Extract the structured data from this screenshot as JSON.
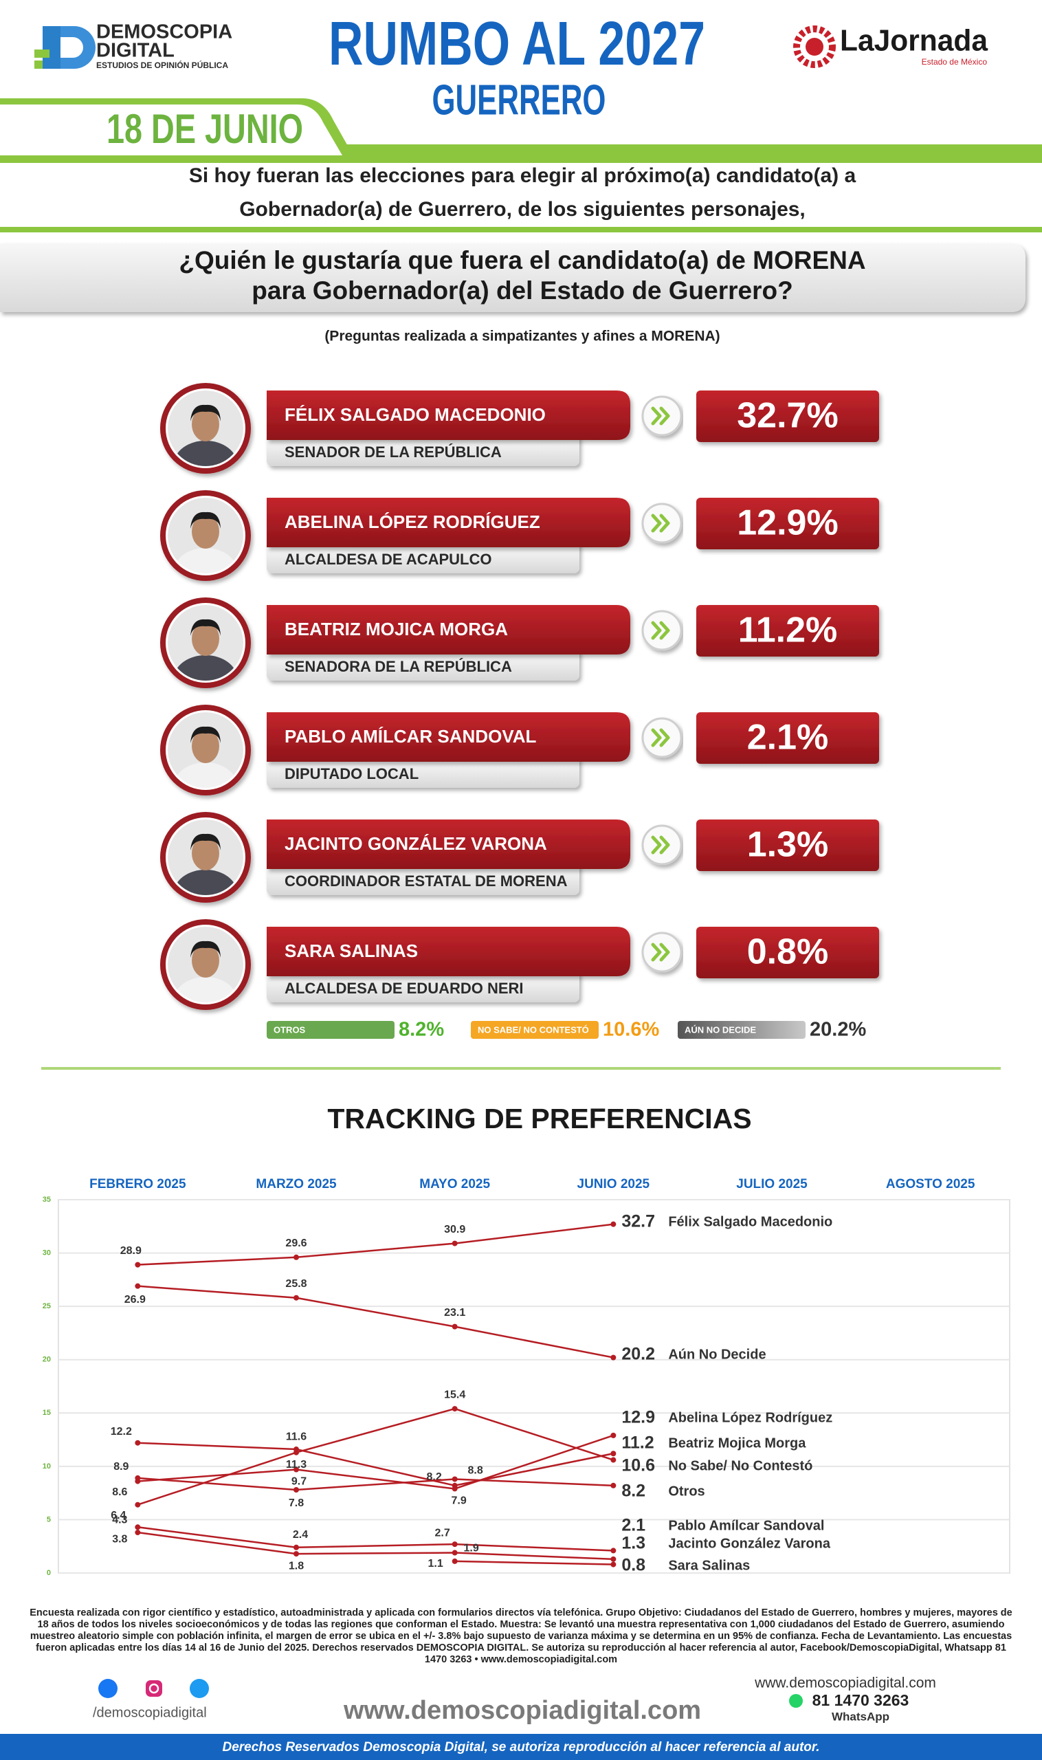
{
  "header": {
    "brand": "DEMOSCOPIA",
    "brand2": "DIGITAL",
    "brand_tagline": "ESTUDIOS DE OPINIÓN PÚBLICA",
    "title": "RUMBO AL 2027",
    "subtitle": "GUERRERO",
    "partner": "LaJornada",
    "partner_tagline": "Estado de México",
    "date": "18 DE JUNIO"
  },
  "intro": [
    "Si hoy fueran las elecciones para elegir al próximo(a) candidato(a) a",
    "Gobernador(a) de Guerrero, de los siguientes personajes,"
  ],
  "question": [
    "¿Quién le gustaría que fuera el candidato(a) de MORENA",
    "para Gobernador(a) del Estado de Guerrero?"
  ],
  "note": "(Preguntas realizada a simpatizantes y afines a MORENA)",
  "candidates": [
    {
      "name": "FÉLIX SALGADO MACEDONIO",
      "role": "SENADOR DE LA REPÚBLICA",
      "result": "32.7%"
    },
    {
      "name": "ABELINA LÓPEZ RODRÍGUEZ",
      "role": "ALCALDESA DE ACAPULCO",
      "result": "12.9%"
    },
    {
      "name": "BEATRIZ MOJICA MORGA",
      "role": "SENADORA DE LA REPÚBLICA",
      "result": "11.2%"
    },
    {
      "name": "PABLO AMÍLCAR SANDOVAL",
      "role": "DIPUTADO LOCAL",
      "result": "2.1%"
    },
    {
      "name": "JACINTO GONZÁLEZ VARONA",
      "role": "COORDINADOR ESTATAL DE MORENA",
      "result": "1.3%"
    },
    {
      "name": "SARA SALINAS",
      "role": "ALCALDESA DE EDUARDO NERI",
      "result": "0.8%"
    }
  ],
  "summary": [
    {
      "label": "OTROS",
      "result": "8.2%",
      "color": "#6aa84f",
      "text_color": "#4fb22d"
    },
    {
      "label": "NO SABE/ NO CONTESTÓ",
      "result": "10.6%",
      "color": "#f5a623",
      "text_color": "#f39c12"
    },
    {
      "label": "AÚN NO DECIDE",
      "result": "20.2%",
      "color": "#8a8a8a",
      "text_color": "#333333"
    }
  ],
  "chart_data": {
    "type": "line",
    "title": "TRACKING DE PREFERENCIAS",
    "categories": [
      "FEBRERO 2025",
      "MARZO 2025",
      "MAYO 2025",
      "JUNIO 2025",
      "JULIO 2025",
      "AGOSTO 2025"
    ],
    "series": [
      {
        "name": "Félix Salgado Macedonio",
        "color": "#b51d23",
        "values": [
          28.9,
          29.6,
          30.9,
          32.7,
          null,
          null
        ]
      },
      {
        "name": "Aún No Decide",
        "color": "#b51d23",
        "values": [
          26.9,
          25.8,
          23.1,
          20.2,
          null,
          null
        ]
      },
      {
        "name": "Abelina López Rodríguez",
        "color": "#b51d23",
        "values": [
          8.6,
          9.7,
          7.9,
          12.9,
          null,
          null
        ]
      },
      {
        "name": "Beatriz Mojica Morga",
        "color": "#b51d23",
        "values": [
          12.2,
          11.6,
          8.2,
          11.2,
          null,
          null
        ]
      },
      {
        "name": "No Sabe/ No Contestó",
        "color": "#b51d23",
        "values": [
          6.4,
          11.3,
          15.4,
          10.6,
          null,
          null
        ]
      },
      {
        "name": "Otros",
        "color": "#b51d23",
        "values": [
          8.9,
          7.8,
          8.8,
          8.2,
          null,
          null
        ]
      },
      {
        "name": "Pablo Amílcar Sandoval",
        "color": "#b51d23",
        "values": [
          4.3,
          2.4,
          2.7,
          2.1,
          null,
          null
        ]
      },
      {
        "name": "Jacinto González Varona",
        "color": "#b51d23",
        "values": [
          3.8,
          1.8,
          1.9,
          1.3,
          null,
          null
        ]
      },
      {
        "name": "Sara Salinas",
        "color": "#b51d23",
        "values": [
          null,
          null,
          1.1,
          0.8,
          null,
          null
        ]
      }
    ],
    "ylim": [
      0,
      35
    ],
    "yticks": [
      0,
      5,
      10,
      15,
      20,
      25,
      30,
      35
    ],
    "grid": true
  },
  "footer": {
    "methodology": "Encuesta realizada con rigor científico y estadístico, autoadministrada y aplicada con formularios directos vía telefónica. Grupo Objetivo: Ciudadanos del Estado de Guerrero, hombres y mujeres, mayores de 18 años de todos los niveles socioeconómicos y de todas las regiones que conforman el Estado. Muestra: Se levantó una muestra representativa con 1,000 ciudadanos del Estado de Guerrero, asumiendo muestreo aleatorio simple con población infinita, el margen de error se ubica en el +/- 3.8% bajo supuesto de varianza máxima y se determina en un 95% de confianza. Fecha de Levantamiento. Las encuestas fueron aplicadas entre los días 14 al 16 de Junio del 2025. Derechos reservados DEMOSCOPIA DIGITAL. Se autoriza su reproducción al hacer referencia al autor, Facebook/DemoscopiaDigital, Whatsapp 81 1470 3263 • www.demoscopiadigital.com",
    "social": "/demoscopiadigital",
    "website": "www.demoscopiadigital.com",
    "website_small": "www.demoscopiadigital.com",
    "phone": "81 1470 3263",
    "whatsapp": "WhatsApp",
    "rights": "Derechos Reservados Demoscopia Digital, se autoriza reproducción al hacer referencia al autor."
  }
}
